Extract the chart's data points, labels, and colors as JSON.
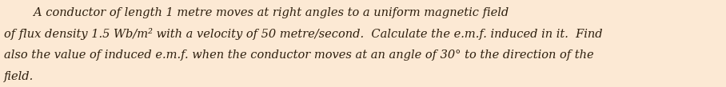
{
  "background_color": "#fce9d4",
  "line1": "        A conductor of length 1 metre moves at right angles to a uniform magnetic field",
  "line2": "of flux density 1.5 Wb/m² with a velocity of 50 metre/second.  Calculate the e.m.f. induced in it.  Find",
  "line3": "also the value of induced e.m.f. when the conductor moves at an angle of 30° to the direction of the",
  "line4": "field.",
  "font_family": "DejaVu Serif",
  "fontsize": 10.5,
  "color": "#2e1f0e",
  "fig_width": 9.08,
  "fig_height": 1.09,
  "dpi": 100
}
